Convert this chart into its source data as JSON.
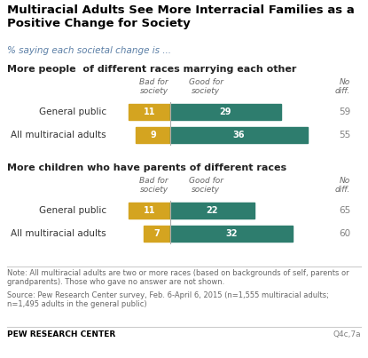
{
  "title": "Multiracial Adults See More Interracial Families as a\nPositive Change for Society",
  "subtitle": "% saying each societal change is ...",
  "section1_title": "More people  of different races marrying each other",
  "section2_title": "More children who have parents of different races",
  "bad_values": [
    11,
    9,
    11,
    7
  ],
  "good_values": [
    29,
    36,
    22,
    32
  ],
  "no_diff": [
    59,
    55,
    65,
    60
  ],
  "labels": [
    "General public",
    "All multiracial adults",
    "General public",
    "All multiracial adults"
  ],
  "bad_color": "#D4A420",
  "good_color": "#2E7D6E",
  "note_text": "Note: All multiracial adults are two or more races (based on backgrounds of self, parents or\ngrandparents). Those who gave no answer are not shown.",
  "source_text": "Source: Pew Research Center survey, Feb. 6-April 6, 2015 (n=1,555 multiracial adults;\nn=1,495 adults in the general public)",
  "footer_left": "PEW RESEARCH CENTER",
  "footer_right": "Q4c,7a",
  "col_header_bad": "Bad for\nsociety",
  "col_header_good": "Good for\nsociety",
  "col_header_nodiff": "No\ndiff.",
  "subtitle_color": "#5B7FA6",
  "nodiff_color": "#808080",
  "label_color": "#333333",
  "section_title_color": "#222222",
  "note_color": "#666666"
}
